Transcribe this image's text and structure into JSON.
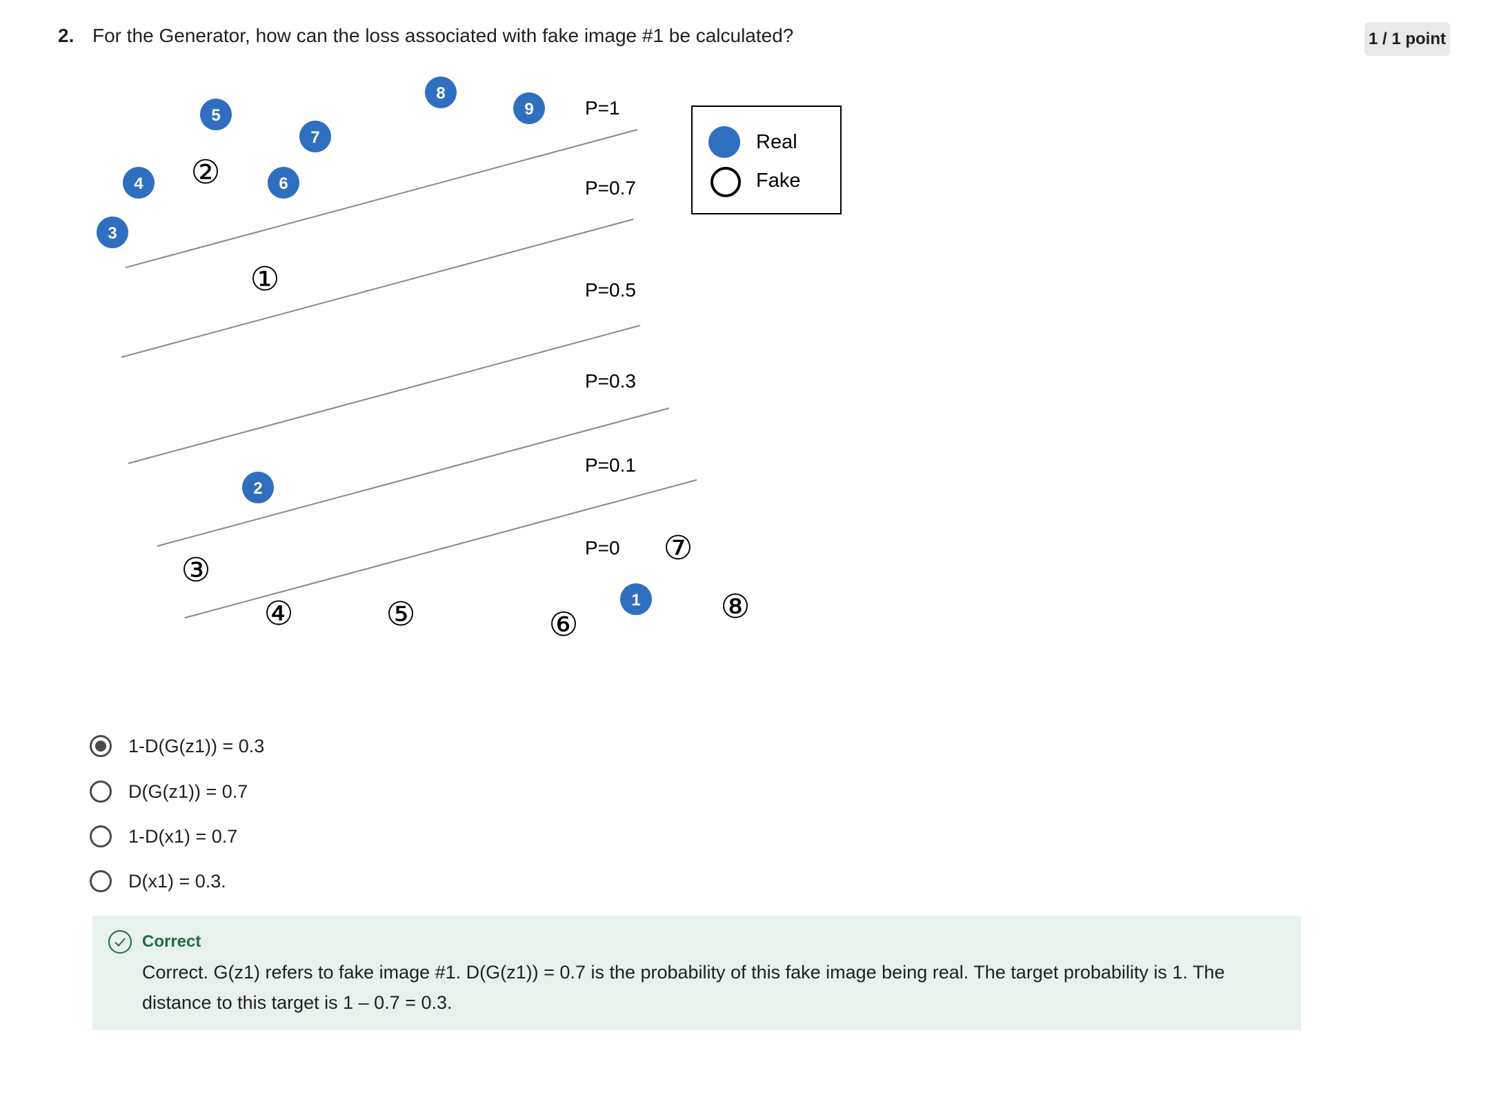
{
  "question": {
    "number": "2.",
    "text": "For the Generator, how can the loss associated with fake image #1 be calculated?",
    "points": "1 / 1 point"
  },
  "figure": {
    "probability_labels": [
      "P=1",
      "P=0.7",
      "P=0.5",
      "P=0.3",
      "P=0.1",
      "P=0"
    ],
    "legend": {
      "real_label": "Real",
      "fake_label": "Fake"
    },
    "real_points": [
      "1",
      "2",
      "3",
      "4",
      "5",
      "6",
      "7",
      "8",
      "9"
    ],
    "fake_points": [
      "①",
      "②",
      "③",
      "④",
      "⑤",
      "⑥",
      "⑦",
      "⑧"
    ],
    "colors": {
      "real": "#2f6fc0",
      "fake_stroke": "#000000",
      "line": "#888888"
    }
  },
  "options": [
    {
      "label": "1-D(G(z1)) = 0.3",
      "selected": true
    },
    {
      "label": "D(G(z1)) = 0.7",
      "selected": false
    },
    {
      "label": "1-D(x1) = 0.7",
      "selected": false
    },
    {
      "label": "D(x1) = 0.3.",
      "selected": false
    }
  ],
  "feedback": {
    "title": "Correct",
    "text": "Correct. G(z1) refers to fake image #1. D(G(z1)) = 0.7 is the probability of this fake image being real. The target probability is 1. The distance to this target is 1 – 0.7 = 0.3."
  }
}
